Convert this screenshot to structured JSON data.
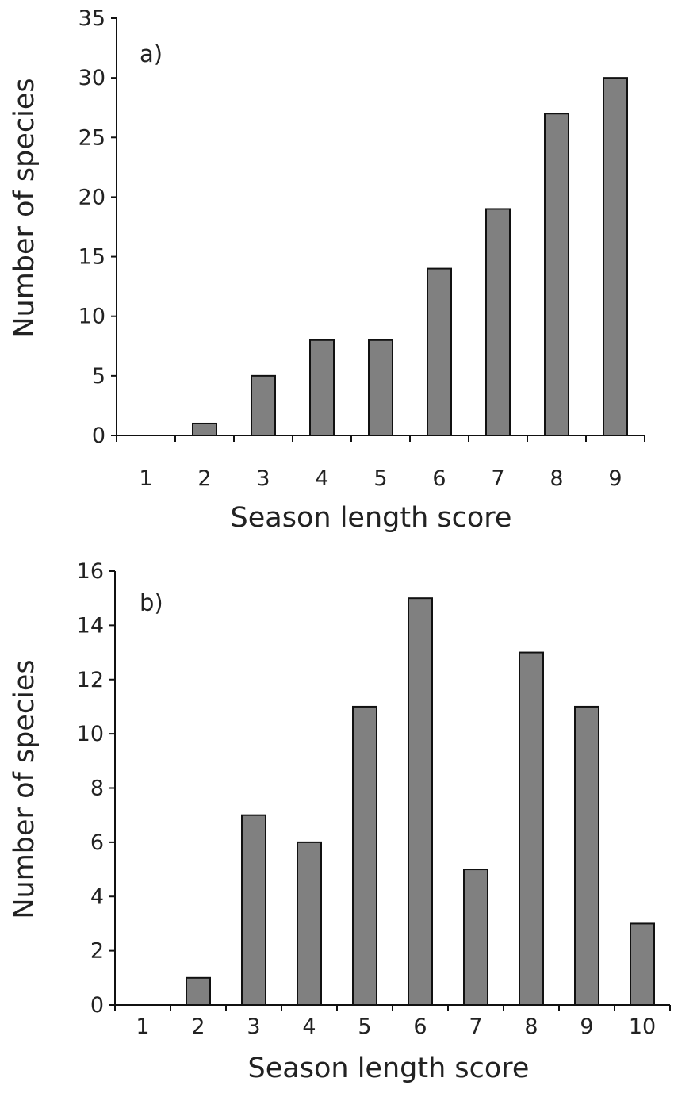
{
  "colors": {
    "bar_fill": "#808080",
    "bar_stroke": "#111111",
    "axis": "#111111"
  },
  "chart_data": [
    {
      "type": "bar",
      "panel_label": "a)",
      "categories": [
        "1",
        "2",
        "3",
        "4",
        "5",
        "6",
        "7",
        "8",
        "9"
      ],
      "values": [
        0,
        1,
        5,
        8,
        8,
        14,
        19,
        27,
        30
      ],
      "xlabel": "Season length score",
      "ylabel": "Number of species",
      "ylim": [
        0,
        35
      ],
      "yticks": [
        0,
        5,
        10,
        15,
        20,
        25,
        30,
        35
      ],
      "grid": false,
      "legend": "none"
    },
    {
      "type": "bar",
      "panel_label": "b)",
      "categories": [
        "1",
        "2",
        "3",
        "4",
        "5",
        "6",
        "7",
        "8",
        "9",
        "10"
      ],
      "values": [
        0,
        1,
        7,
        6,
        11,
        15,
        5,
        13,
        11,
        3
      ],
      "xlabel": "Season length score",
      "ylabel": "Number of species",
      "ylim": [
        0,
        16
      ],
      "yticks": [
        0,
        2,
        4,
        6,
        8,
        10,
        12,
        14,
        16
      ],
      "grid": false,
      "legend": "none"
    }
  ]
}
